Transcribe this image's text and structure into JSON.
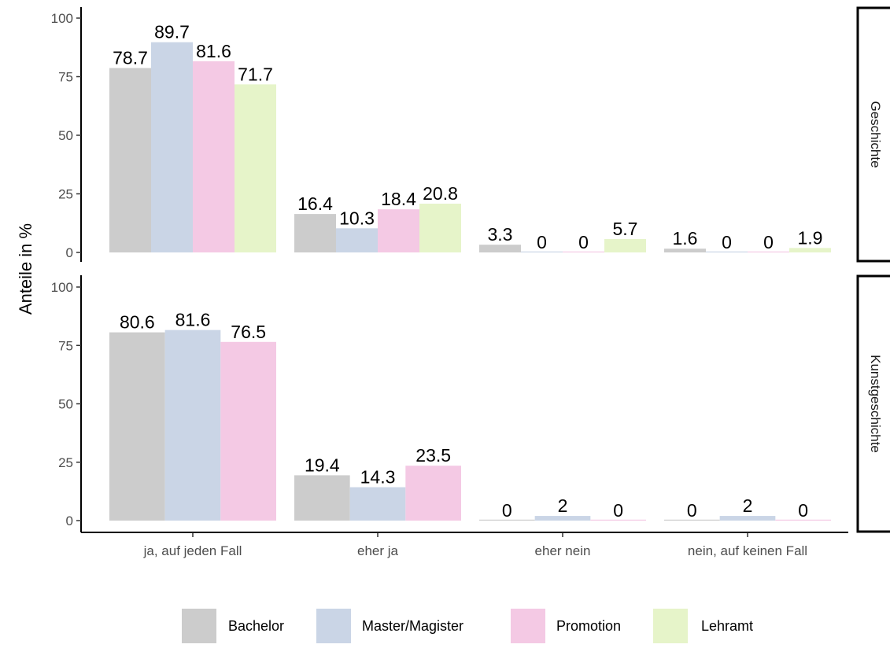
{
  "chart_data": {
    "type": "bar",
    "ylabel": "Anteile in %",
    "xlabel": "",
    "ylim": [
      0,
      100
    ],
    "y_ticks": [
      0,
      25,
      50,
      75,
      100
    ],
    "categories": [
      "ja, auf jeden Fall",
      "eher ja",
      "eher nein",
      "nein, auf keinen Fall"
    ],
    "legend_position": "bottom",
    "colors": {
      "Bachelor": "#cccccc",
      "Master/Magister": "#cad5e6",
      "Promotion": "#f4c9e4",
      "Lehramt": "#e6f4c9"
    },
    "legend": [
      "Bachelor",
      "Master/Magister",
      "Promotion",
      "Lehramt"
    ],
    "panels": [
      {
        "label": "Geschichte",
        "series": [
          {
            "name": "Bachelor",
            "values": [
              78.7,
              16.4,
              3.3,
              1.6
            ]
          },
          {
            "name": "Master/Magister",
            "values": [
              89.7,
              10.3,
              0,
              0
            ]
          },
          {
            "name": "Promotion",
            "values": [
              81.6,
              18.4,
              0,
              0
            ]
          },
          {
            "name": "Lehramt",
            "values": [
              71.7,
              20.8,
              5.7,
              1.9
            ]
          }
        ]
      },
      {
        "label": "Kunstgeschichte",
        "series": [
          {
            "name": "Bachelor",
            "values": [
              80.6,
              19.4,
              0,
              0
            ]
          },
          {
            "name": "Master/Magister",
            "values": [
              81.6,
              14.3,
              2,
              2
            ]
          },
          {
            "name": "Promotion",
            "values": [
              76.5,
              23.5,
              0,
              0
            ]
          }
        ]
      }
    ]
  }
}
